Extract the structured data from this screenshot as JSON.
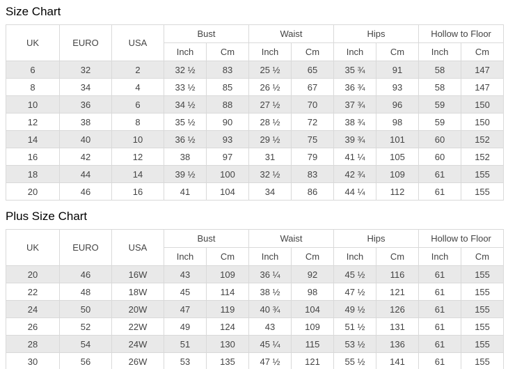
{
  "colors": {
    "stripe_row_bg": "#e9e9e9",
    "border": "#d9d9d9",
    "cell_text": "#444444",
    "title_text": "#000000",
    "page_bg": "#ffffff"
  },
  "chart_data": [
    {
      "type": "table",
      "title": "Size Chart",
      "plain_columns": [
        "UK",
        "EURO",
        "USA"
      ],
      "group_columns": [
        "Bust",
        "Waist",
        "Hips",
        "Hollow to Floor"
      ],
      "sub_columns": [
        "Inch",
        "Cm"
      ],
      "rows": [
        [
          "6",
          "32",
          "2",
          "32 ½",
          "83",
          "25 ½",
          "65",
          "35 ¾",
          "91",
          "58",
          "147"
        ],
        [
          "8",
          "34",
          "4",
          "33 ½",
          "85",
          "26 ½",
          "67",
          "36 ¾",
          "93",
          "58",
          "147"
        ],
        [
          "10",
          "36",
          "6",
          "34 ½",
          "88",
          "27 ½",
          "70",
          "37 ¾",
          "96",
          "59",
          "150"
        ],
        [
          "12",
          "38",
          "8",
          "35 ½",
          "90",
          "28 ½",
          "72",
          "38 ¾",
          "98",
          "59",
          "150"
        ],
        [
          "14",
          "40",
          "10",
          "36 ½",
          "93",
          "29 ½",
          "75",
          "39 ¾",
          "101",
          "60",
          "152"
        ],
        [
          "16",
          "42",
          "12",
          "38",
          "97",
          "31",
          "79",
          "41 ¼",
          "105",
          "60",
          "152"
        ],
        [
          "18",
          "44",
          "14",
          "39 ½",
          "100",
          "32 ½",
          "83",
          "42 ¾",
          "109",
          "61",
          "155"
        ],
        [
          "20",
          "46",
          "16",
          "41",
          "104",
          "34",
          "86",
          "44 ¼",
          "112",
          "61",
          "155"
        ]
      ]
    },
    {
      "type": "table",
      "title": "Plus Size Chart",
      "plain_columns": [
        "UK",
        "EURO",
        "USA"
      ],
      "group_columns": [
        "Bust",
        "Waist",
        "Hips",
        "Hollow to Floor"
      ],
      "sub_columns": [
        "Inch",
        "Cm"
      ],
      "rows": [
        [
          "20",
          "46",
          "16W",
          "43",
          "109",
          "36 ¼",
          "92",
          "45 ½",
          "116",
          "61",
          "155"
        ],
        [
          "22",
          "48",
          "18W",
          "45",
          "114",
          "38 ½",
          "98",
          "47 ½",
          "121",
          "61",
          "155"
        ],
        [
          "24",
          "50",
          "20W",
          "47",
          "119",
          "40 ¾",
          "104",
          "49 ½",
          "126",
          "61",
          "155"
        ],
        [
          "26",
          "52",
          "22W",
          "49",
          "124",
          "43",
          "109",
          "51 ½",
          "131",
          "61",
          "155"
        ],
        [
          "28",
          "54",
          "24W",
          "51",
          "130",
          "45 ¼",
          "115",
          "53 ½",
          "136",
          "61",
          "155"
        ],
        [
          "30",
          "56",
          "26W",
          "53",
          "135",
          "47 ½",
          "121",
          "55 ½",
          "141",
          "61",
          "155"
        ]
      ]
    }
  ]
}
